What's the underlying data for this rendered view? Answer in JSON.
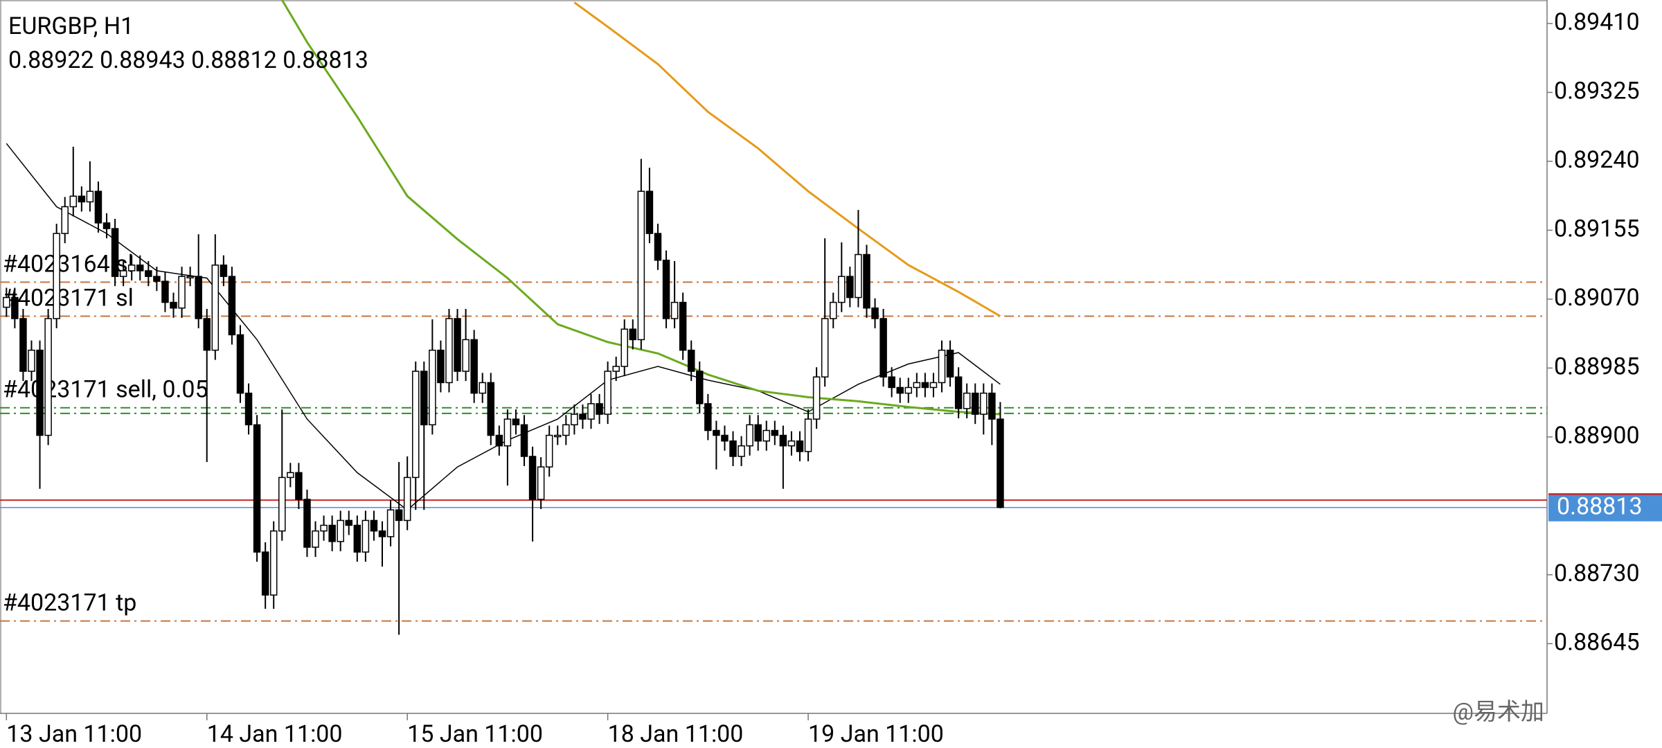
{
  "chart_data": {
    "type": "candlestick",
    "title": "EURGBP, H1",
    "categories": [
      "13 Jan 11:00",
      null,
      null,
      null,
      null,
      null,
      null,
      null,
      null,
      null,
      null,
      null,
      null,
      null,
      null,
      null,
      null,
      null,
      null,
      null,
      null,
      null,
      null,
      null,
      "14 Jan 11:00",
      null,
      null,
      null,
      null,
      null,
      null,
      null,
      null,
      null,
      null,
      null,
      null,
      null,
      null,
      null,
      null,
      null,
      null,
      null,
      null,
      null,
      null,
      null,
      "15 Jan 11:00",
      null,
      null,
      null,
      null,
      null,
      null,
      null,
      null,
      null,
      null,
      null,
      null,
      null,
      null,
      null,
      null,
      null,
      null,
      null,
      null,
      null,
      null,
      null,
      "18 Jan 11:00",
      null,
      null,
      null,
      null,
      null,
      null,
      null,
      null,
      null,
      null,
      null,
      null,
      null,
      null,
      null,
      null,
      null,
      null,
      null,
      null,
      null,
      null,
      null,
      "19 Jan 11:00",
      null,
      null,
      null,
      null,
      null,
      null,
      null,
      null,
      null,
      null,
      null,
      null,
      null,
      null,
      null,
      null,
      null,
      null,
      null,
      null,
      null,
      null,
      null
    ],
    "open": [
      0.8906,
      0.89072,
      0.89046,
      0.88981,
      0.89007,
      0.88902,
      0.89046,
      0.89151,
      0.89184,
      0.89197,
      0.8919,
      0.89203,
      0.89164,
      0.89157,
      0.89098,
      0.89105,
      0.89112,
      0.89105,
      0.89098,
      0.89092,
      0.89066,
      0.89059,
      0.89098,
      0.89098,
      0.89046,
      0.89007,
      0.89112,
      0.89098,
      0.89026,
      0.88954,
      0.88915,
      0.88758,
      0.88705,
      0.88784,
      0.8885,
      0.88856,
      0.88823,
      0.88764,
      0.88784,
      0.88791,
      0.88771,
      0.88797,
      0.88791,
      0.88758,
      0.88797,
      0.88784,
      0.88777,
      0.8881,
      0.88797,
      0.8885,
      0.88981,
      0.88915,
      0.89007,
      0.88967,
      0.89046,
      0.88981,
      0.8902,
      0.88954,
      0.88967,
      0.88902,
      0.88889,
      0.88922,
      0.88915,
      0.88876,
      0.88823,
      0.88863,
      0.88902,
      0.88902,
      0.88915,
      0.88928,
      0.88922,
      0.88941,
      0.88928,
      0.88981,
      0.88987,
      0.89033,
      0.8902,
      0.89203,
      0.89151,
      0.89118,
      0.89046,
      0.89066,
      0.89007,
      0.88981,
      0.88941,
      0.88908,
      0.88902,
      0.88895,
      0.88876,
      0.88889,
      0.88915,
      0.88895,
      0.88908,
      0.88902,
      0.88889,
      0.88895,
      0.88882,
      0.88922,
      0.88974,
      0.89046,
      0.89066,
      0.89098,
      0.89072,
      0.89125,
      0.89059,
      0.89046,
      0.88974,
      0.88961,
      0.88954,
      0.88961,
      0.88967,
      0.88961,
      0.88967,
      0.89007,
      0.88974,
      0.88935,
      0.88954,
      0.88928,
      0.88954,
      0.88922
    ],
    "high": [
      0.89084,
      0.89084,
      0.89058,
      0.89019,
      0.89019,
      0.89058,
      0.89163,
      0.89196,
      0.89258,
      0.89209,
      0.8924,
      0.89215,
      0.89176,
      0.89169,
      0.89117,
      0.89124,
      0.89124,
      0.89117,
      0.8911,
      0.89104,
      0.89078,
      0.8911,
      0.8911,
      0.8915,
      0.89058,
      0.8915,
      0.89124,
      0.8911,
      0.89038,
      0.88966,
      0.88927,
      0.8877,
      0.88796,
      0.88934,
      0.88868,
      0.88868,
      0.88835,
      0.88796,
      0.88803,
      0.88803,
      0.88809,
      0.88809,
      0.88803,
      0.88809,
      0.88809,
      0.88796,
      0.88822,
      0.88869,
      0.88876,
      0.88993,
      0.88993,
      0.89045,
      0.89019,
      0.89058,
      0.89058,
      0.89058,
      0.89032,
      0.88979,
      0.88979,
      0.88914,
      0.88934,
      0.88934,
      0.88927,
      0.88888,
      0.88875,
      0.88914,
      0.88914,
      0.88927,
      0.8894,
      0.8894,
      0.88953,
      0.88953,
      0.88993,
      0.88999,
      0.89045,
      0.89045,
      0.89243,
      0.89232,
      0.89163,
      0.8913,
      0.89117,
      0.89078,
      0.89019,
      0.88993,
      0.88953,
      0.8892,
      0.88914,
      0.88907,
      0.88901,
      0.88927,
      0.88927,
      0.8892,
      0.8892,
      0.88914,
      0.88907,
      0.88907,
      0.88934,
      0.88986,
      0.89145,
      0.89078,
      0.8914,
      0.8911,
      0.8918,
      0.89137,
      0.89071,
      0.89058,
      0.88986,
      0.88973,
      0.88973,
      0.88979,
      0.88979,
      0.88979,
      0.89019,
      0.89019,
      0.88986,
      0.88966,
      0.88966,
      0.88966,
      0.88966,
      0.88943
    ],
    "low": [
      0.89048,
      0.89034,
      0.88969,
      0.88969,
      0.88836,
      0.8889,
      0.89034,
      0.89139,
      0.89172,
      0.89178,
      0.89178,
      0.89152,
      0.89145,
      0.89086,
      0.89086,
      0.89093,
      0.89093,
      0.89086,
      0.8908,
      0.89054,
      0.89047,
      0.89047,
      0.89086,
      0.89034,
      0.88869,
      0.88995,
      0.89086,
      0.89014,
      0.88942,
      0.88903,
      0.88746,
      0.88688,
      0.88688,
      0.88772,
      0.88838,
      0.88811,
      0.88752,
      0.88752,
      0.88772,
      0.88759,
      0.88759,
      0.88779,
      0.88746,
      0.88746,
      0.88772,
      0.8874,
      0.88765,
      0.88656,
      0.88785,
      0.8881,
      0.8881,
      0.88903,
      0.88955,
      0.88955,
      0.88969,
      0.88969,
      0.88942,
      0.88942,
      0.8889,
      0.88877,
      0.8884,
      0.88903,
      0.88864,
      0.88771,
      0.88811,
      0.88851,
      0.8889,
      0.8889,
      0.88903,
      0.8891,
      0.8891,
      0.88916,
      0.88916,
      0.88969,
      0.88975,
      0.89008,
      0.89008,
      0.89139,
      0.89106,
      0.89034,
      0.89034,
      0.88995,
      0.88969,
      0.88929,
      0.88896,
      0.8886,
      0.88883,
      0.88864,
      0.88864,
      0.88877,
      0.88883,
      0.88883,
      0.8889,
      0.88836,
      0.88877,
      0.8887,
      0.8887,
      0.8891,
      0.88962,
      0.89034,
      0.89054,
      0.8906,
      0.8906,
      0.89047,
      0.89034,
      0.88962,
      0.88949,
      0.88942,
      0.88942,
      0.88949,
      0.88949,
      0.88949,
      0.88955,
      0.88962,
      0.88923,
      0.88923,
      0.88916,
      0.88903,
      0.8889,
      0.88812
    ],
    "close": [
      0.89072,
      0.89046,
      0.88981,
      0.89007,
      0.88902,
      0.89046,
      0.89151,
      0.89184,
      0.89197,
      0.8919,
      0.89203,
      0.89164,
      0.89157,
      0.89098,
      0.89105,
      0.89112,
      0.89105,
      0.89098,
      0.89092,
      0.89066,
      0.89059,
      0.89098,
      0.89098,
      0.89046,
      0.89007,
      0.89112,
      0.89098,
      0.89026,
      0.88954,
      0.88915,
      0.88758,
      0.88705,
      0.88784,
      0.8885,
      0.88856,
      0.88823,
      0.88764,
      0.88784,
      0.88791,
      0.88771,
      0.88797,
      0.88791,
      0.88758,
      0.88797,
      0.88784,
      0.88777,
      0.8881,
      0.88797,
      0.8885,
      0.88981,
      0.88915,
      0.89007,
      0.88967,
      0.89046,
      0.88981,
      0.8902,
      0.88954,
      0.88967,
      0.88902,
      0.88889,
      0.88922,
      0.88915,
      0.88876,
      0.88823,
      0.88863,
      0.88902,
      0.88902,
      0.88915,
      0.88928,
      0.88922,
      0.88941,
      0.88928,
      0.88981,
      0.88987,
      0.89033,
      0.8902,
      0.89203,
      0.89151,
      0.89118,
      0.89046,
      0.89066,
      0.89007,
      0.88981,
      0.88941,
      0.88908,
      0.88902,
      0.88895,
      0.88876,
      0.88889,
      0.88915,
      0.88895,
      0.88908,
      0.88902,
      0.88889,
      0.88895,
      0.88882,
      0.88922,
      0.88974,
      0.89046,
      0.89066,
      0.89098,
      0.89072,
      0.89125,
      0.89059,
      0.89046,
      0.88974,
      0.88961,
      0.88954,
      0.88961,
      0.88967,
      0.88961,
      0.88967,
      0.89007,
      0.88974,
      0.88935,
      0.88954,
      0.88928,
      0.88954,
      0.88922,
      0.88813
    ],
    "up_color": "#ffffff",
    "down_color": "#000000",
    "ylim": [
      0.88559,
      0.89439
    ],
    "yticks": [
      {
        "value": 0.8941,
        "label": "0.89410"
      },
      0.89325,
      {
        "value": 0.8924,
        "label": "0.89240"
      },
      0.89155,
      {
        "value": 0.8907,
        "label": "0.89070"
      },
      0.88985,
      {
        "value": 0.889,
        "label": "0.88900"
      },
      {
        "value": 0.8873,
        "label": "0.88730"
      },
      0.88645
    ],
    "moving_averages": [
      {
        "color": "#000000",
        "x": [
          0,
          6,
          12,
          18,
          24,
          30,
          36,
          42,
          48,
          54,
          60,
          66,
          72,
          78,
          84,
          90,
          96,
          102,
          108,
          114,
          119
        ],
        "values": [
          0.89262,
          0.89184,
          0.89151,
          0.89105,
          0.89096,
          0.8902,
          0.88922,
          0.88856,
          0.8881,
          0.88863,
          0.88896,
          0.88922,
          0.8897,
          0.88987,
          0.8897,
          0.88957,
          0.88931,
          0.88965,
          0.8899,
          0.89004,
          0.88965
        ]
      },
      {
        "color": "#6aaa1e",
        "x": [
          33,
          36,
          42,
          48,
          54,
          60,
          66,
          72,
          78,
          84,
          90,
          96,
          102,
          108,
          114,
          119
        ],
        "values": [
          0.89439,
          0.89387,
          0.89295,
          0.89197,
          0.89144,
          0.89096,
          0.89039,
          0.89017,
          0.89003,
          0.88977,
          0.88957,
          0.88949,
          0.88944,
          0.88937,
          0.88931,
          0.88928
        ]
      },
      {
        "color": "#e69a1a",
        "x": [
          68,
          72,
          78,
          84,
          90,
          96,
          102,
          108,
          114,
          119
        ],
        "values": [
          0.89436,
          0.89406,
          0.8936,
          0.89301,
          0.89256,
          0.89203,
          0.89157,
          0.89112,
          0.89079,
          0.89049
        ]
      }
    ],
    "levels": [
      {
        "label": "#4023164 sl",
        "value": 0.89091,
        "color": "#c8743c"
      },
      {
        "label": "#4023171 sl",
        "value": 0.89049,
        "color": "#c8743c"
      },
      {
        "label": "#4023171 sell, 0.05",
        "value": 0.88936,
        "color": "#2e8b2e"
      },
      {
        "value": 0.88929,
        "color": "#2e8b2e"
      },
      {
        "label": "#4023171 tp",
        "value": 0.88673,
        "color": "#c8743c"
      }
    ],
    "ask_line": {
      "value": 0.88822,
      "color": "#c62828"
    },
    "price_color": "#4a90d9",
    "watermark": "@易术加"
  }
}
